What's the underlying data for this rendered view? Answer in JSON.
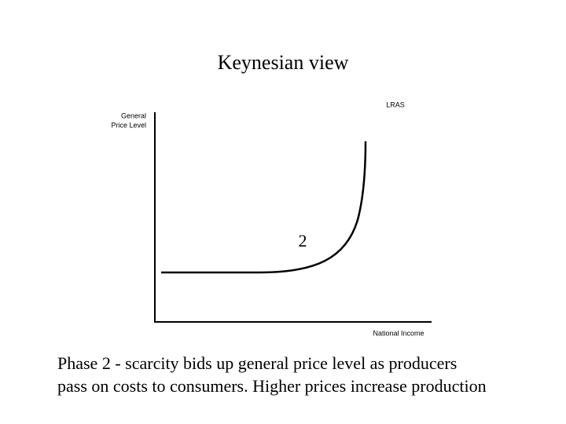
{
  "title": "Keynesian view",
  "curve": {
    "label": "LRAS",
    "phase_label": "2"
  },
  "axes": {
    "y_label": [
      "General",
      "Price Level"
    ],
    "x_label": "National Income"
  },
  "caption": [
    "Phase 2 - scarcity bids up general price level as producers",
    "pass on costs to consumers. Higher prices increase production"
  ]
}
